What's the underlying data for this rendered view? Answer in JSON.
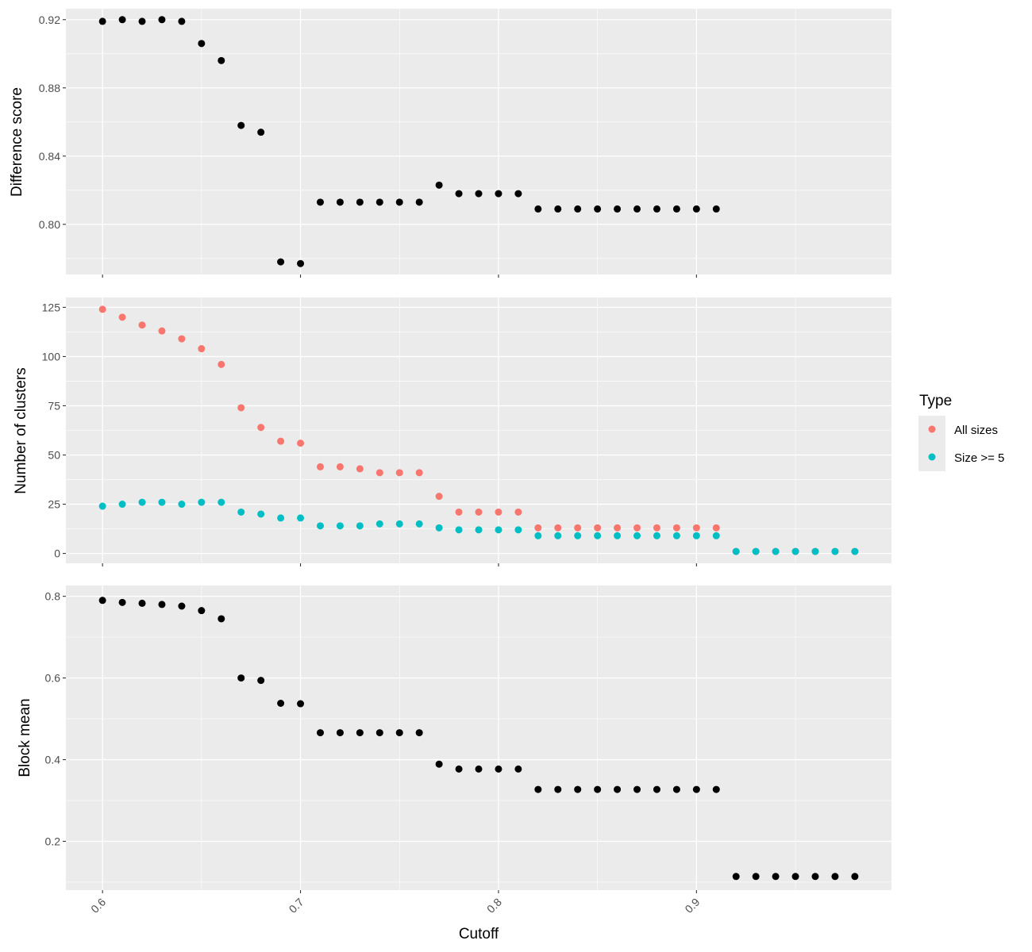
{
  "chart_data": [
    {
      "type": "scatter",
      "panel": "top",
      "ylabel": "Difference score",
      "xlabel": "",
      "yticks": [
        0.8,
        0.84,
        0.88,
        0.92
      ],
      "ytick_labels": [
        "0.80",
        "0.84",
        "0.88",
        "0.92"
      ],
      "ylim": [
        0.7706,
        0.9264
      ],
      "grid": true,
      "color": "#000000",
      "x": [
        0.6,
        0.61,
        0.62,
        0.63,
        0.64,
        0.65,
        0.66,
        0.67,
        0.68,
        0.69,
        0.7,
        0.71,
        0.72,
        0.73,
        0.74,
        0.75,
        0.76,
        0.77,
        0.78,
        0.79,
        0.8,
        0.81,
        0.82,
        0.83,
        0.84,
        0.85,
        0.86,
        0.87,
        0.88,
        0.89,
        0.9,
        0.91
      ],
      "y": [
        0.919,
        0.92,
        0.919,
        0.92,
        0.919,
        0.906,
        0.896,
        0.858,
        0.854,
        0.778,
        0.777,
        0.813,
        0.813,
        0.813,
        0.813,
        0.813,
        0.813,
        0.823,
        0.818,
        0.818,
        0.818,
        0.818,
        0.809,
        0.809,
        0.809,
        0.809,
        0.809,
        0.809,
        0.809,
        0.809,
        0.809,
        0.809
      ]
    },
    {
      "type": "scatter",
      "panel": "middle",
      "ylabel": "Number of clusters",
      "xlabel": "",
      "yticks": [
        0,
        25,
        50,
        75,
        100,
        125
      ],
      "ytick_labels": [
        "0",
        "25",
        "50",
        "75",
        "100",
        "125"
      ],
      "ylim": [
        -5,
        130
      ],
      "grid": true,
      "legend": {
        "title": "Type",
        "position": "right",
        "entries": [
          {
            "label": "All sizes",
            "color": "#F8766D"
          },
          {
            "label": "Size >= 5",
            "color": "#00BFC4"
          }
        ]
      },
      "series": [
        {
          "name": "All sizes",
          "color": "#F8766D",
          "x": [
            0.6,
            0.61,
            0.62,
            0.63,
            0.64,
            0.65,
            0.66,
            0.67,
            0.68,
            0.69,
            0.7,
            0.71,
            0.72,
            0.73,
            0.74,
            0.75,
            0.76,
            0.77,
            0.78,
            0.79,
            0.8,
            0.81,
            0.82,
            0.83,
            0.84,
            0.85,
            0.86,
            0.87,
            0.88,
            0.89,
            0.9,
            0.91,
            0.92,
            0.93,
            0.94,
            0.95,
            0.96,
            0.97,
            0.98
          ],
          "y": [
            124,
            120,
            116,
            113,
            109,
            104,
            96,
            74,
            64,
            57,
            56,
            44,
            44,
            43,
            41,
            41,
            41,
            29,
            21,
            21,
            21,
            21,
            13,
            13,
            13,
            13,
            13,
            13,
            13,
            13,
            13,
            13,
            1,
            1,
            1,
            1,
            1,
            1,
            1
          ]
        },
        {
          "name": "Size >= 5",
          "color": "#00BFC4",
          "x": [
            0.6,
            0.61,
            0.62,
            0.63,
            0.64,
            0.65,
            0.66,
            0.67,
            0.68,
            0.69,
            0.7,
            0.71,
            0.72,
            0.73,
            0.74,
            0.75,
            0.76,
            0.77,
            0.78,
            0.79,
            0.8,
            0.81,
            0.82,
            0.83,
            0.84,
            0.85,
            0.86,
            0.87,
            0.88,
            0.89,
            0.9,
            0.91,
            0.92,
            0.93,
            0.94,
            0.95,
            0.96,
            0.97,
            0.98
          ],
          "y": [
            24,
            25,
            26,
            26,
            25,
            26,
            26,
            21,
            20,
            18,
            18,
            14,
            14,
            14,
            15,
            15,
            15,
            13,
            12,
            12,
            12,
            12,
            9,
            9,
            9,
            9,
            9,
            9,
            9,
            9,
            9,
            9,
            1,
            1,
            1,
            1,
            1,
            1,
            1
          ]
        }
      ]
    },
    {
      "type": "scatter",
      "panel": "bottom",
      "ylabel": "Block mean",
      "xlabel": "Cutoff",
      "yticks": [
        0.2,
        0.4,
        0.6,
        0.8
      ],
      "ytick_labels": [
        "0.2",
        "0.4",
        "0.6",
        "0.8"
      ],
      "ylim": [
        0.0805,
        0.8265
      ],
      "xticks": [
        0.6,
        0.7,
        0.8,
        0.9
      ],
      "xtick_labels": [
        "0.6",
        "0.7",
        "0.8",
        "0.9"
      ],
      "xlim": [
        0.5815,
        0.9985
      ],
      "grid": true,
      "color": "#000000",
      "x": [
        0.6,
        0.61,
        0.62,
        0.63,
        0.64,
        0.65,
        0.66,
        0.67,
        0.68,
        0.69,
        0.7,
        0.71,
        0.72,
        0.73,
        0.74,
        0.75,
        0.76,
        0.77,
        0.78,
        0.79,
        0.8,
        0.81,
        0.82,
        0.83,
        0.84,
        0.85,
        0.86,
        0.87,
        0.88,
        0.89,
        0.9,
        0.91,
        0.92,
        0.93,
        0.94,
        0.95,
        0.96,
        0.97,
        0.98
      ],
      "y": [
        0.79,
        0.785,
        0.783,
        0.78,
        0.776,
        0.765,
        0.745,
        0.6,
        0.594,
        0.538,
        0.537,
        0.466,
        0.466,
        0.466,
        0.466,
        0.466,
        0.466,
        0.389,
        0.377,
        0.377,
        0.377,
        0.377,
        0.327,
        0.327,
        0.327,
        0.327,
        0.327,
        0.327,
        0.327,
        0.327,
        0.327,
        0.327,
        0.114,
        0.114,
        0.114,
        0.114,
        0.114,
        0.114,
        0.114
      ]
    }
  ]
}
